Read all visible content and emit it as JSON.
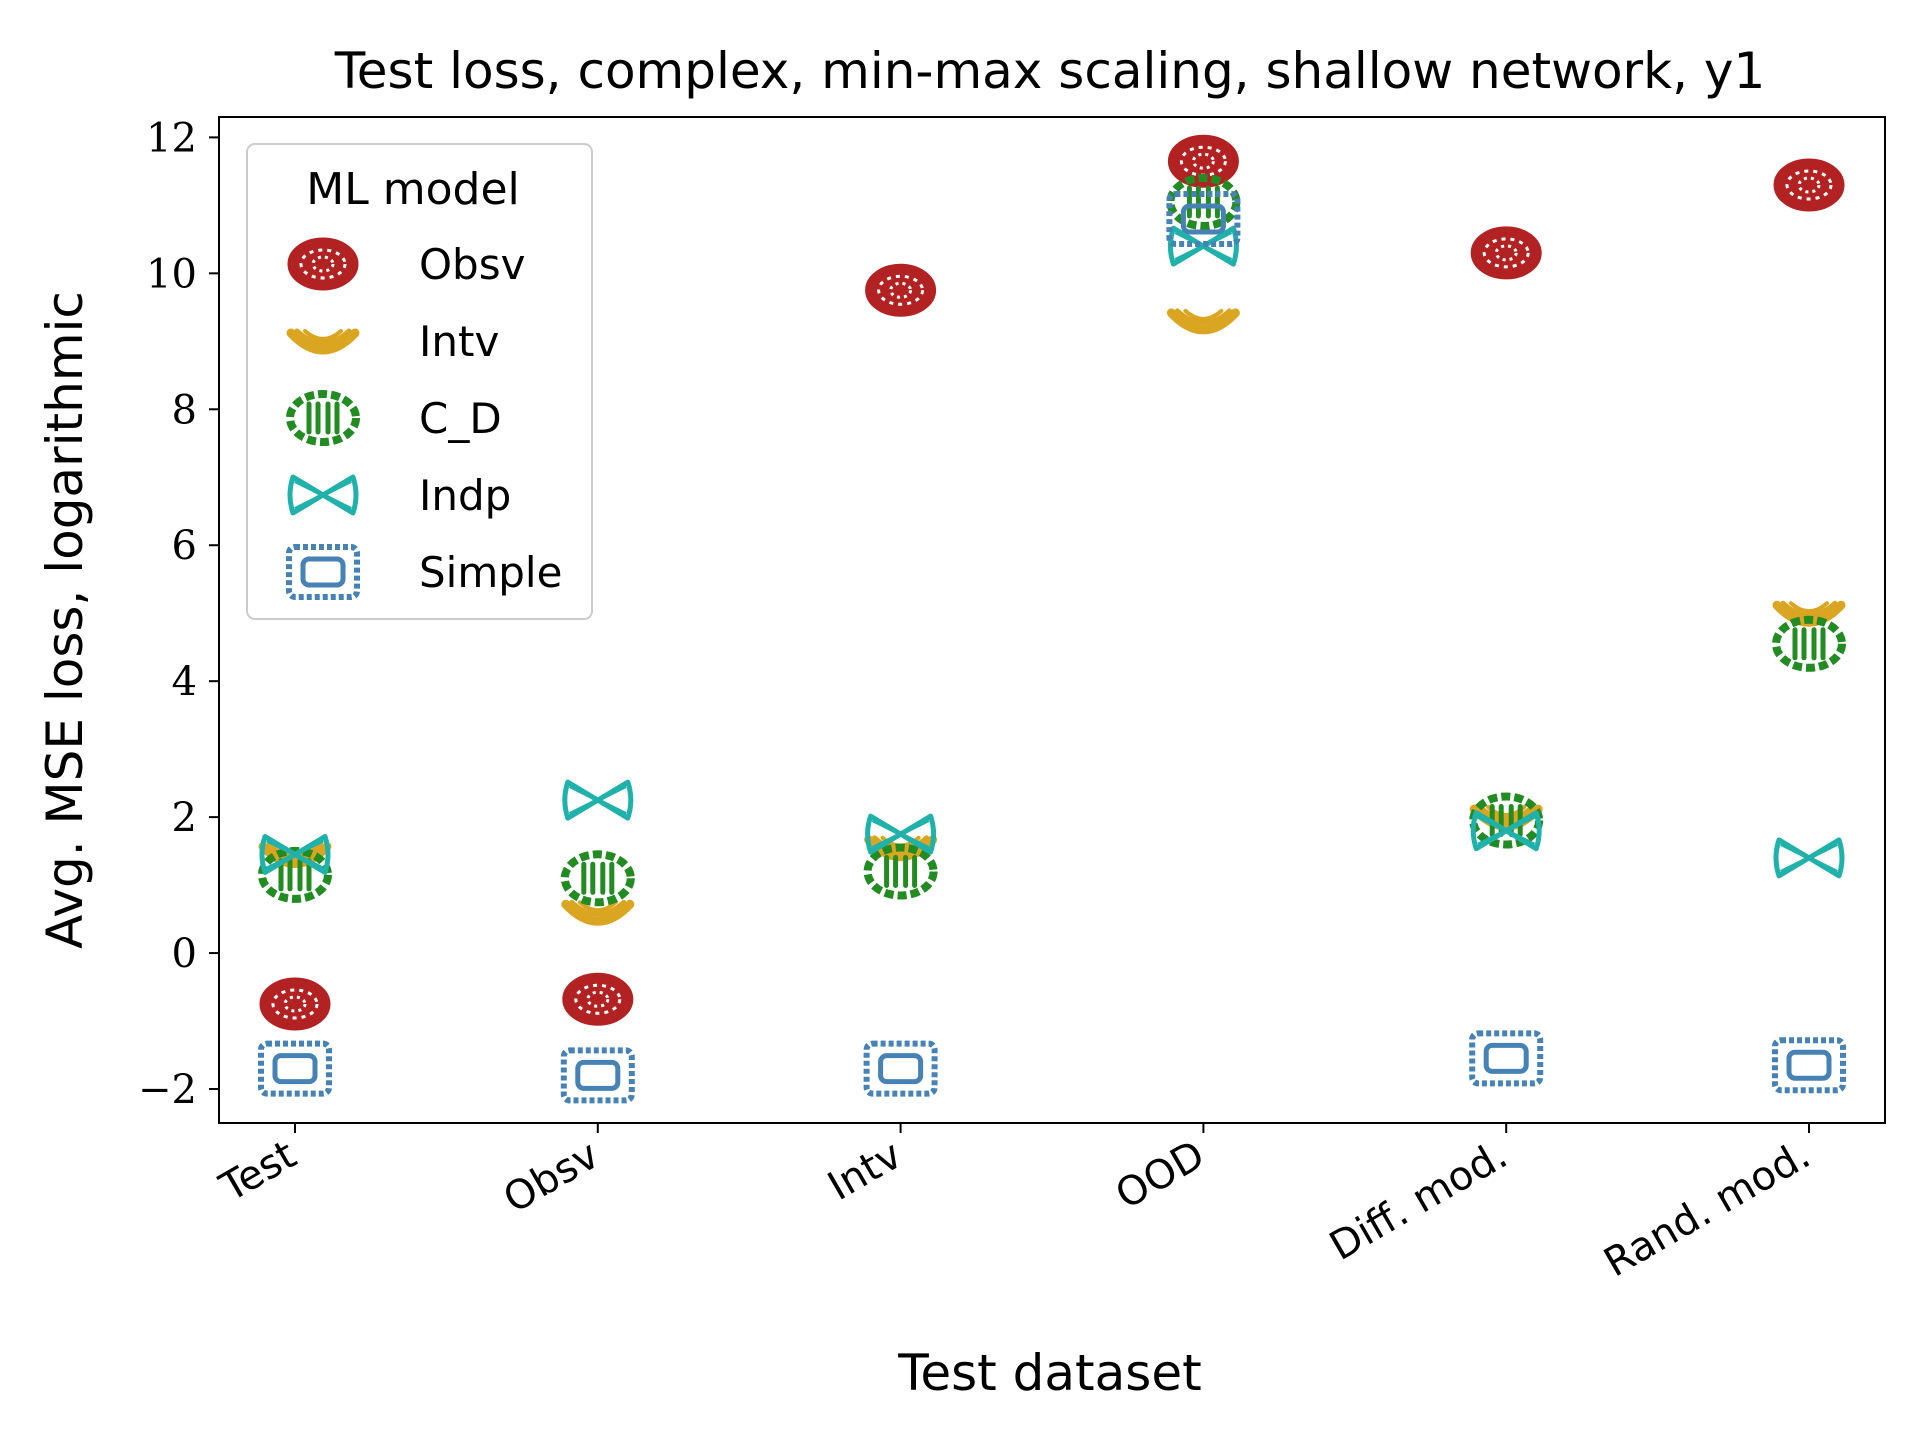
{
  "chart_data": {
    "type": "scatter",
    "title": "Test loss, complex, min-max scaling, shallow network, y1",
    "xlabel": "Test dataset",
    "ylabel": "Avg. MSE loss, logarithmic",
    "categories": [
      "Test",
      "Obsv",
      "Intv",
      "OOD",
      "Diff. mod.",
      "Rand. mod."
    ],
    "ylim": [
      -2.5,
      12.3
    ],
    "yticks": [
      -2,
      0,
      2,
      4,
      6,
      8,
      10,
      12
    ],
    "ytick_labels": [
      "−2",
      "0",
      "2",
      "4",
      "6",
      "8",
      "10",
      "12"
    ],
    "grid": false,
    "legend": {
      "title": "ML model",
      "position": "top-left"
    },
    "series": [
      {
        "name": "Obsv",
        "color": "#b22222",
        "marker": "red-pasta",
        "values": [
          -0.75,
          -0.68,
          9.75,
          11.65,
          10.3,
          11.3
        ]
      },
      {
        "name": "Intv",
        "color": "#daa520",
        "marker": "yellow-pasta",
        "values": [
          1.45,
          0.6,
          1.55,
          9.3,
          2.0,
          5.0
        ]
      },
      {
        "name": "C_D",
        "color": "#228b22",
        "marker": "green-pasta",
        "values": [
          1.15,
          1.1,
          1.2,
          11.05,
          1.95,
          4.55
        ]
      },
      {
        "name": "Indp",
        "color": "#20b2aa",
        "marker": "teal-pasta",
        "values": [
          1.45,
          2.25,
          1.75,
          10.4,
          1.8,
          1.4
        ]
      },
      {
        "name": "Simple",
        "color": "#4682b4",
        "marker": "blue-pasta",
        "values": [
          -1.7,
          -1.8,
          -1.7,
          10.8,
          -1.55,
          -1.65
        ]
      }
    ]
  }
}
